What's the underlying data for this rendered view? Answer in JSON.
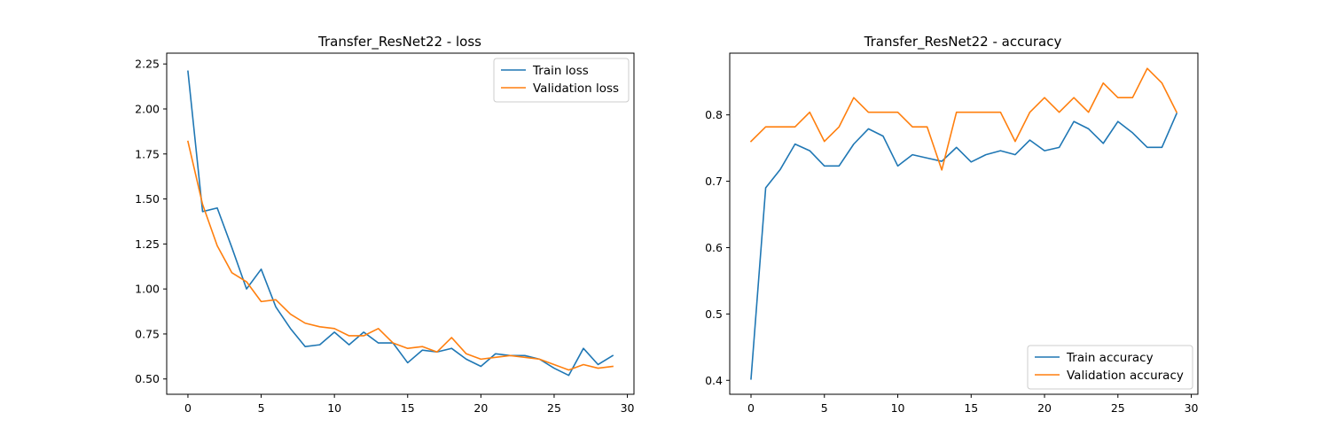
{
  "chart_data": [
    {
      "type": "line",
      "title": "Transfer_ResNet22 - loss",
      "xlabel": "",
      "ylabel": "",
      "xlim": [
        -1.45,
        30.45
      ],
      "ylim": [
        0.415,
        2.31
      ],
      "xticks": [
        0,
        5,
        10,
        15,
        20,
        25,
        30
      ],
      "xtick_labels": [
        "0",
        "5",
        "10",
        "15",
        "20",
        "25",
        "30"
      ],
      "yticks": [
        0.5,
        0.75,
        1.0,
        1.25,
        1.5,
        1.75,
        2.0,
        2.25
      ],
      "ytick_labels": [
        "0.50",
        "0.75",
        "1.00",
        "1.25",
        "1.50",
        "1.75",
        "2.00",
        "2.25"
      ],
      "legend_position": "upper right",
      "grid": false,
      "x": [
        0,
        1,
        2,
        3,
        4,
        5,
        6,
        7,
        8,
        9,
        10,
        11,
        12,
        13,
        14,
        15,
        16,
        17,
        18,
        19,
        20,
        21,
        22,
        23,
        24,
        25,
        26,
        27,
        28,
        29
      ],
      "series": [
        {
          "name": "Train loss",
          "color": "#1f77b4",
          "values": [
            2.21,
            1.43,
            1.45,
            1.23,
            1.0,
            1.11,
            0.9,
            0.78,
            0.68,
            0.69,
            0.76,
            0.69,
            0.76,
            0.7,
            0.7,
            0.59,
            0.66,
            0.65,
            0.67,
            0.61,
            0.57,
            0.64,
            0.63,
            0.63,
            0.61,
            0.56,
            0.52,
            0.67,
            0.58,
            0.63
          ]
        },
        {
          "name": "Validation loss",
          "color": "#ff7f0e",
          "values": [
            1.82,
            1.47,
            1.24,
            1.09,
            1.04,
            0.93,
            0.94,
            0.86,
            0.81,
            0.79,
            0.78,
            0.74,
            0.74,
            0.78,
            0.7,
            0.67,
            0.68,
            0.65,
            0.73,
            0.64,
            0.61,
            0.62,
            0.63,
            0.62,
            0.61,
            0.58,
            0.55,
            0.58,
            0.56,
            0.57
          ]
        }
      ]
    },
    {
      "type": "line",
      "title": "Transfer_ResNet22 - accuracy",
      "xlabel": "",
      "ylabel": "",
      "xlim": [
        -1.45,
        30.45
      ],
      "ylim": [
        0.379,
        0.893
      ],
      "xticks": [
        0,
        5,
        10,
        15,
        20,
        25,
        30
      ],
      "xtick_labels": [
        "0",
        "5",
        "10",
        "15",
        "20",
        "25",
        "30"
      ],
      "yticks": [
        0.4,
        0.5,
        0.6,
        0.7,
        0.8
      ],
      "ytick_labels": [
        "0.4",
        "0.5",
        "0.6",
        "0.7",
        "0.8"
      ],
      "legend_position": "lower right",
      "grid": false,
      "x": [
        0,
        1,
        2,
        3,
        4,
        5,
        6,
        7,
        8,
        9,
        10,
        11,
        12,
        13,
        14,
        15,
        16,
        17,
        18,
        19,
        20,
        21,
        22,
        23,
        24,
        25,
        26,
        27,
        28,
        29
      ],
      "series": [
        {
          "name": "Train accuracy",
          "color": "#1f77b4",
          "values": [
            0.402,
            0.69,
            0.718,
            0.756,
            0.746,
            0.723,
            0.723,
            0.756,
            0.779,
            0.768,
            0.723,
            0.74,
            0.735,
            0.73,
            0.751,
            0.729,
            0.74,
            0.746,
            0.74,
            0.762,
            0.746,
            0.751,
            0.79,
            0.779,
            0.757,
            0.79,
            0.773,
            0.751,
            0.751,
            0.802
          ]
        },
        {
          "name": "Validation accuracy",
          "color": "#ff7f0e",
          "values": [
            0.76,
            0.782,
            0.782,
            0.782,
            0.804,
            0.76,
            0.782,
            0.826,
            0.804,
            0.804,
            0.804,
            0.782,
            0.782,
            0.717,
            0.804,
            0.804,
            0.804,
            0.804,
            0.76,
            0.804,
            0.826,
            0.804,
            0.826,
            0.804,
            0.848,
            0.826,
            0.826,
            0.87,
            0.848,
            0.804
          ]
        }
      ]
    }
  ]
}
